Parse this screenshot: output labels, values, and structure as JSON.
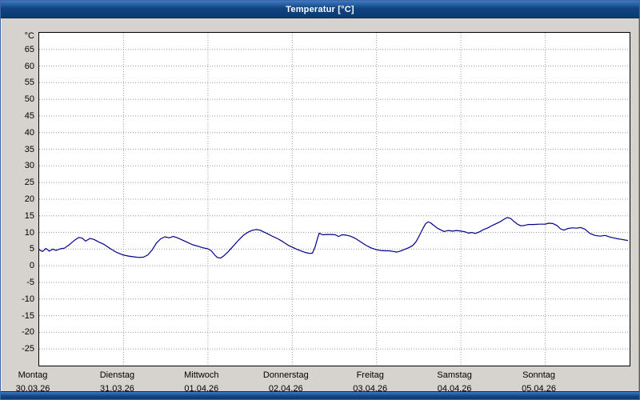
{
  "window": {
    "title": "Temperatur [°C]"
  },
  "chart_data": {
    "type": "line",
    "title": "Temperatur [°C]",
    "xlabel": "",
    "ylabel": "°C",
    "ylim": [
      -30,
      70
    ],
    "xlim_days": [
      0,
      7
    ],
    "grid": "dotted",
    "legend": "none",
    "yticks": [
      65,
      60,
      55,
      50,
      45,
      40,
      35,
      30,
      25,
      20,
      15,
      10,
      5,
      0,
      -5,
      -10,
      -15,
      -20,
      -25
    ],
    "x_axis_days": [
      {
        "name": "Montag",
        "date": "30.03.26"
      },
      {
        "name": "Dienstag",
        "date": "31.03.26"
      },
      {
        "name": "Mittwoch",
        "date": "01.04.26"
      },
      {
        "name": "Donnerstag",
        "date": "02.04.26"
      },
      {
        "name": "Freitag",
        "date": "03.04.26"
      },
      {
        "name": "Samstag",
        "date": "04.04.26"
      },
      {
        "name": "Sonntag",
        "date": "05.04.26"
      }
    ],
    "series": [
      {
        "name": "Temperatur",
        "color": "#00008b",
        "points": [
          [
            0.0,
            4.8
          ],
          [
            0.04,
            4.3
          ],
          [
            0.08,
            5.2
          ],
          [
            0.12,
            4.4
          ],
          [
            0.16,
            5.0
          ],
          [
            0.2,
            4.6
          ],
          [
            0.25,
            5.1
          ],
          [
            0.3,
            5.3
          ],
          [
            0.36,
            6.4
          ],
          [
            0.42,
            7.7
          ],
          [
            0.47,
            8.5
          ],
          [
            0.51,
            8.3
          ],
          [
            0.55,
            7.4
          ],
          [
            0.6,
            8.2
          ],
          [
            0.65,
            7.9
          ],
          [
            0.7,
            7.2
          ],
          [
            0.77,
            6.4
          ],
          [
            0.84,
            5.2
          ],
          [
            0.92,
            4.0
          ],
          [
            1.0,
            3.2
          ],
          [
            1.06,
            2.9
          ],
          [
            1.12,
            2.7
          ],
          [
            1.18,
            2.5
          ],
          [
            1.24,
            2.6
          ],
          [
            1.29,
            3.3
          ],
          [
            1.34,
            4.8
          ],
          [
            1.39,
            6.8
          ],
          [
            1.44,
            8.1
          ],
          [
            1.49,
            8.7
          ],
          [
            1.54,
            8.4
          ],
          [
            1.59,
            8.8
          ],
          [
            1.64,
            8.4
          ],
          [
            1.7,
            7.7
          ],
          [
            1.76,
            7.0
          ],
          [
            1.82,
            6.3
          ],
          [
            1.88,
            5.9
          ],
          [
            1.94,
            5.4
          ],
          [
            2.0,
            5.1
          ],
          [
            2.04,
            4.5
          ],
          [
            2.08,
            3.3
          ],
          [
            2.11,
            2.5
          ],
          [
            2.15,
            2.3
          ],
          [
            2.19,
            3.0
          ],
          [
            2.24,
            4.2
          ],
          [
            2.3,
            5.9
          ],
          [
            2.36,
            7.6
          ],
          [
            2.42,
            9.1
          ],
          [
            2.47,
            10.0
          ],
          [
            2.52,
            10.6
          ],
          [
            2.57,
            10.9
          ],
          [
            2.62,
            10.7
          ],
          [
            2.66,
            10.2
          ],
          [
            2.71,
            9.6
          ],
          [
            2.77,
            8.8
          ],
          [
            2.83,
            8.1
          ],
          [
            2.89,
            7.2
          ],
          [
            2.95,
            6.2
          ],
          [
            3.0,
            5.6
          ],
          [
            3.05,
            5.0
          ],
          [
            3.09,
            4.6
          ],
          [
            3.13,
            4.2
          ],
          [
            3.17,
            3.9
          ],
          [
            3.21,
            3.7
          ],
          [
            3.24,
            3.8
          ],
          [
            3.27,
            5.6
          ],
          [
            3.3,
            8.2
          ],
          [
            3.32,
            9.8
          ],
          [
            3.36,
            9.3
          ],
          [
            3.41,
            9.4
          ],
          [
            3.46,
            9.4
          ],
          [
            3.51,
            9.3
          ],
          [
            3.55,
            8.8
          ],
          [
            3.59,
            9.3
          ],
          [
            3.64,
            9.2
          ],
          [
            3.69,
            8.9
          ],
          [
            3.75,
            8.2
          ],
          [
            3.81,
            7.2
          ],
          [
            3.87,
            6.2
          ],
          [
            3.93,
            5.4
          ],
          [
            4.0,
            4.8
          ],
          [
            4.05,
            4.6
          ],
          [
            4.1,
            4.5
          ],
          [
            4.15,
            4.5
          ],
          [
            4.2,
            4.3
          ],
          [
            4.24,
            4.1
          ],
          [
            4.28,
            4.4
          ],
          [
            4.33,
            4.9
          ],
          [
            4.38,
            5.4
          ],
          [
            4.43,
            6.1
          ],
          [
            4.47,
            7.3
          ],
          [
            4.51,
            9.2
          ],
          [
            4.55,
            11.2
          ],
          [
            4.58,
            12.6
          ],
          [
            4.61,
            13.2
          ],
          [
            4.64,
            12.9
          ],
          [
            4.68,
            12.1
          ],
          [
            4.72,
            11.3
          ],
          [
            4.76,
            10.8
          ],
          [
            4.8,
            10.3
          ],
          [
            4.85,
            10.6
          ],
          [
            4.9,
            10.4
          ],
          [
            4.95,
            10.6
          ],
          [
            5.0,
            10.4
          ],
          [
            5.05,
            10.2
          ],
          [
            5.09,
            9.8
          ],
          [
            5.13,
            10.0
          ],
          [
            5.17,
            9.7
          ],
          [
            5.22,
            10.2
          ],
          [
            5.27,
            10.9
          ],
          [
            5.32,
            11.4
          ],
          [
            5.37,
            12.1
          ],
          [
            5.42,
            12.7
          ],
          [
            5.47,
            13.3
          ],
          [
            5.52,
            14.1
          ],
          [
            5.55,
            14.5
          ],
          [
            5.59,
            14.2
          ],
          [
            5.63,
            13.3
          ],
          [
            5.67,
            12.5
          ],
          [
            5.71,
            12.0
          ],
          [
            5.75,
            12.1
          ],
          [
            5.8,
            12.4
          ],
          [
            5.86,
            12.4
          ],
          [
            5.93,
            12.5
          ],
          [
            6.0,
            12.5
          ],
          [
            6.04,
            12.8
          ],
          [
            6.09,
            12.7
          ],
          [
            6.14,
            12.1
          ],
          [
            6.18,
            11.1
          ],
          [
            6.22,
            10.7
          ],
          [
            6.27,
            11.2
          ],
          [
            6.32,
            11.4
          ],
          [
            6.37,
            11.3
          ],
          [
            6.42,
            11.5
          ],
          [
            6.47,
            11.0
          ],
          [
            6.53,
            9.7
          ],
          [
            6.59,
            9.1
          ],
          [
            6.65,
            8.9
          ],
          [
            6.71,
            9.1
          ],
          [
            6.77,
            8.6
          ],
          [
            6.84,
            8.2
          ],
          [
            6.91,
            7.9
          ],
          [
            6.98,
            7.6
          ]
        ]
      }
    ]
  }
}
